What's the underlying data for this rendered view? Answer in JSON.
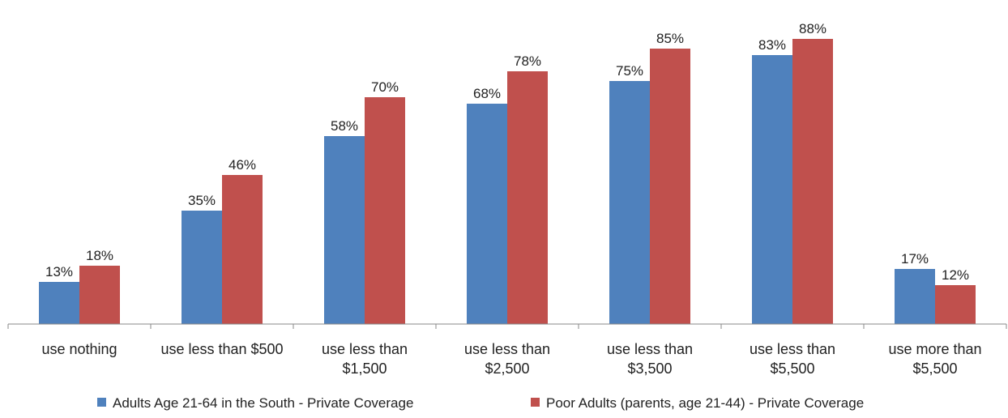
{
  "chart_data": {
    "type": "bar",
    "categories": [
      [
        "use nothing"
      ],
      [
        "use less than $500"
      ],
      [
        "use less than",
        "$1,500"
      ],
      [
        "use less than",
        "$2,500"
      ],
      [
        "use less than",
        "$3,500"
      ],
      [
        "use less than",
        "$5,500"
      ],
      [
        "use more than",
        "$5,500"
      ]
    ],
    "series": [
      {
        "name": "Adults Age 21-64 in the South - Private Coverage",
        "color": "#4f81bd",
        "values": [
          13,
          35,
          58,
          68,
          75,
          83,
          17
        ]
      },
      {
        "name": "Poor Adults (parents, age 21-44) - Private Coverage",
        "color": "#c0504d",
        "values": [
          18,
          46,
          70,
          78,
          85,
          88,
          12
        ]
      }
    ],
    "value_suffix": "%",
    "ylim": [
      0,
      100
    ],
    "grid": false,
    "legend": "bottom",
    "title": "",
    "xlabel": "",
    "ylabel": ""
  }
}
